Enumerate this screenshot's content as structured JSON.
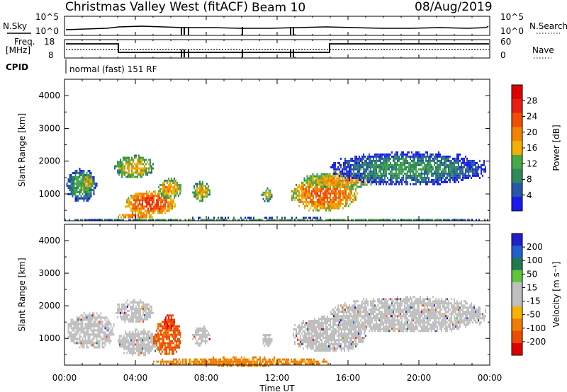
{
  "header": {
    "station": "Christmas Valley West (fitACF)",
    "beam": "Beam 10",
    "date": "08/Aug/2019"
  },
  "top_panels": {
    "nsky_label": "N.Sky",
    "nsky_ticks": [
      "10^5",
      "10^0"
    ],
    "nsearch_label": "N.Search",
    "nsearch_ticks": [
      "10^5",
      "10^0"
    ],
    "freq_label_line1": "Freq.",
    "freq_label_line2": "[MHz]",
    "freq_ticks": [
      "18",
      "8"
    ],
    "nave_label": "Nave",
    "nave_ticks": [
      "60",
      "0"
    ],
    "cpid_label": "CPID",
    "cpid_text": "normal (fast) 151 RF"
  },
  "colors": {
    "power_scale": [
      "#1a1aee",
      "#2a55aa",
      "#2f8a5a",
      "#47a847",
      "#f2b000",
      "#f28400",
      "#f04e00",
      "#e81e10",
      "#e00000"
    ],
    "velocity_scale": [
      "#2020c8",
      "#2060d0",
      "#1f7a52",
      "#62c43a",
      "#bfbfbf",
      "#bfbfbf",
      "#f5b400",
      "#f07c00",
      "#ee4a00",
      "#e00000"
    ],
    "ground_scatter": "#c0c0c0"
  },
  "chart_data": [
    {
      "type": "heatmap",
      "panel": "power",
      "ylabel": "Slant Range [km]",
      "yticks": [
        "4000",
        "3000",
        "2000",
        "1000"
      ],
      "ylim": [
        180,
        4500
      ],
      "xticks": [
        "00:00",
        "04:00",
        "08:00",
        "12:00",
        "16:00",
        "20:00",
        "00:00"
      ],
      "xlim_hours": [
        0,
        24
      ],
      "colorbar_label": "Power [dB]",
      "colorbar_ticks": [
        "28",
        "24",
        "20",
        "16",
        "12",
        "8",
        "4"
      ],
      "clim": [
        0,
        32
      ],
      "echo_regions": [
        {
          "t0": 0.1,
          "t1": 1.8,
          "r0": 800,
          "r1": 1800,
          "power": 14
        },
        {
          "t0": 1.0,
          "t1": 1.6,
          "r0": 1200,
          "r1": 1600,
          "power": 22
        },
        {
          "t0": 2.8,
          "t1": 5.0,
          "r0": 1500,
          "r1": 2200,
          "power": 20
        },
        {
          "t0": 3.4,
          "t1": 6.2,
          "r0": 400,
          "r1": 1100,
          "power": 28
        },
        {
          "t0": 3.0,
          "t1": 5.0,
          "r0": 250,
          "r1": 450,
          "power": 26
        },
        {
          "t0": 5.2,
          "t1": 6.6,
          "r0": 900,
          "r1": 1500,
          "power": 22
        },
        {
          "t0": 7.2,
          "t1": 8.2,
          "r0": 800,
          "r1": 1400,
          "power": 20
        },
        {
          "t0": 11.1,
          "t1": 11.7,
          "r0": 800,
          "r1": 1200,
          "power": 18
        },
        {
          "t0": 12.8,
          "t1": 16.5,
          "r0": 500,
          "r1": 1500,
          "power": 26
        },
        {
          "t0": 13.5,
          "t1": 17.5,
          "r0": 1200,
          "r1": 1700,
          "power": 22
        },
        {
          "t0": 15.0,
          "t1": 23.8,
          "r0": 1300,
          "r1": 2300,
          "power": 12
        },
        {
          "t0": 0.0,
          "t1": 24.0,
          "r0": 180,
          "r1": 300,
          "power": 14
        }
      ]
    },
    {
      "type": "heatmap",
      "panel": "velocity",
      "ylabel": "Slant Range [km]",
      "yticks": [
        "4000",
        "3000",
        "2000",
        "1000"
      ],
      "ylim": [
        180,
        4500
      ],
      "xticks": [
        "00:00",
        "04:00",
        "08:00",
        "12:00",
        "16:00",
        "20:00",
        "00:00"
      ],
      "xlim_hours": [
        0,
        24
      ],
      "xlabel": "Time UT",
      "colorbar_label": "Velocity [m s⁻¹]",
      "colorbar_ticks": [
        "200",
        "100",
        "50",
        "15",
        "-15",
        "-50",
        "-100",
        "-200"
      ],
      "echo_regions": [
        {
          "t0": 0.1,
          "t1": 2.8,
          "r0": 700,
          "r1": 1800,
          "velocity": 0
        },
        {
          "t0": 2.8,
          "t1": 5.0,
          "r0": 1500,
          "r1": 2200,
          "velocity": 0
        },
        {
          "t0": 3.0,
          "t1": 5.2,
          "r0": 500,
          "r1": 1300,
          "velocity": 0
        },
        {
          "t0": 5.0,
          "t1": 6.6,
          "r0": 500,
          "r1": 1600,
          "velocity": -80
        },
        {
          "t0": 5.6,
          "t1": 6.2,
          "r0": 1300,
          "r1": 1800,
          "velocity": -150
        },
        {
          "t0": 7.2,
          "t1": 8.2,
          "r0": 800,
          "r1": 1400,
          "velocity": 0
        },
        {
          "t0": 11.1,
          "t1": 11.7,
          "r0": 800,
          "r1": 1200,
          "velocity": 0
        },
        {
          "t0": 12.8,
          "t1": 17.0,
          "r0": 600,
          "r1": 1700,
          "velocity": 0
        },
        {
          "t0": 15.0,
          "t1": 23.8,
          "r0": 1200,
          "r1": 2300,
          "velocity": 0
        },
        {
          "t0": 5.0,
          "t1": 15.0,
          "r0": 180,
          "r1": 450,
          "velocity": -40
        }
      ]
    }
  ]
}
